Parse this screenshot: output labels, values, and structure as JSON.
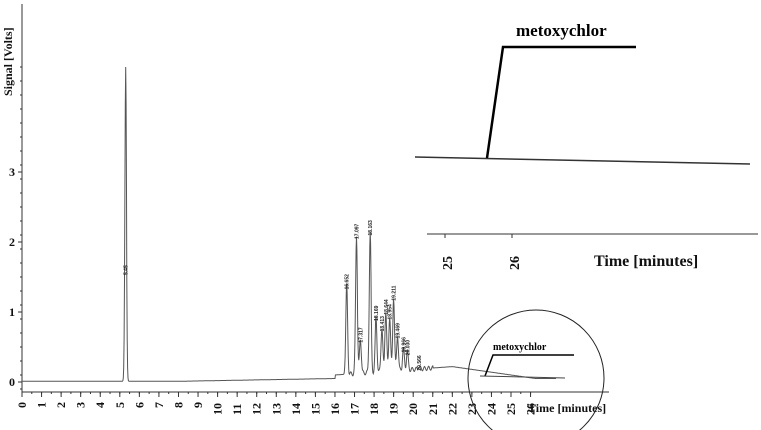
{
  "chart_data": [
    {
      "type": "line",
      "xlabel": "Time [minutes]",
      "ylabel": "Signal [Volts]",
      "xlim": [
        0,
        30
      ],
      "ylim": [
        -0.1,
        4.6
      ],
      "x_ticks": [
        "0",
        "1",
        "2",
        "3",
        "4",
        "5",
        "6",
        "7",
        "8",
        "9",
        "10",
        "11",
        "12",
        "13",
        "14",
        "15",
        "16",
        "17",
        "18",
        "19",
        "20",
        "21",
        "22",
        "23",
        "24",
        "25",
        "26"
      ],
      "y_ticks": [
        "0",
        "1",
        "2",
        "3"
      ],
      "y_tick_values": [
        0,
        1,
        2,
        3
      ],
      "peaks": [
        {
          "x": 5.3,
          "y": 4.5,
          "label": "5.45"
        },
        {
          "x": 16.6,
          "y": 1.38,
          "label": "16.652"
        },
        {
          "x": 17.1,
          "y": 2.1,
          "label": "17.097"
        },
        {
          "x": 17.3,
          "y": 0.62,
          "label": "17.317"
        },
        {
          "x": 17.8,
          "y": 2.15,
          "label": "18.163"
        },
        {
          "x": 18.1,
          "y": 0.93,
          "label": "18.169"
        },
        {
          "x": 18.4,
          "y": 0.78,
          "label": "18.413"
        },
        {
          "x": 18.6,
          "y": 1.02,
          "label": "18.644"
        },
        {
          "x": 18.8,
          "y": 0.95,
          "label": "18.954"
        },
        {
          "x": 19.0,
          "y": 1.22,
          "label": "19.211"
        },
        {
          "x": 19.2,
          "y": 0.68,
          "label": "19.469"
        },
        {
          "x": 19.5,
          "y": 0.48,
          "label": "19.966"
        },
        {
          "x": 19.7,
          "y": 0.44,
          "label": "20.030"
        },
        {
          "x": 20.3,
          "y": 0.22,
          "label": "20.566"
        }
      ],
      "annotations": [
        {
          "text": "metoxychlor",
          "x": 26,
          "y": 0.05
        }
      ]
    },
    {
      "type": "line",
      "xlabel": "Time [minutes]",
      "x_ticks": [
        "25",
        "26"
      ],
      "annotations": [
        {
          "text": "metoxychlor"
        }
      ]
    }
  ]
}
